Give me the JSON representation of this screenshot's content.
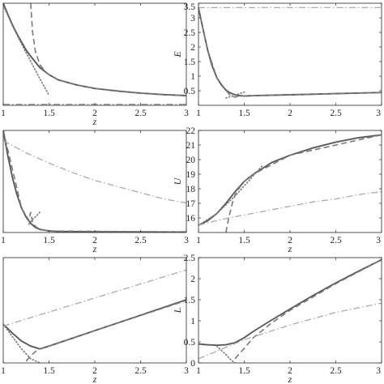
{
  "chart_data": [
    {
      "type": "line",
      "panel": "top-left",
      "xlabel": "z",
      "ylabel": "",
      "xlim": [
        1,
        3
      ],
      "ylim": [
        0,
        10
      ],
      "xticks": [
        "1",
        "1.5",
        "2",
        "2.5",
        "3"
      ],
      "yticks": [],
      "series": [
        {
          "style": "solid",
          "color": "#5a5a5a",
          "x": [
            1.0,
            1.05,
            1.1,
            1.15,
            1.2,
            1.25,
            1.3,
            1.4,
            1.5,
            1.6,
            1.8,
            2.0,
            2.25,
            2.5,
            2.75,
            3.0
          ],
          "y": [
            10.0,
            8.9,
            7.9,
            7.0,
            6.2,
            5.4,
            4.8,
            3.7,
            3.0,
            2.5,
            2.0,
            1.65,
            1.4,
            1.2,
            1.05,
            0.95
          ]
        },
        {
          "style": "dashed",
          "color": "#7a7a7a",
          "x": [
            1.3,
            1.32,
            1.35,
            1.4,
            1.45,
            1.5,
            1.6,
            1.8,
            2.0,
            2.5,
            3.0
          ],
          "y": [
            10.0,
            7.2,
            5.3,
            4.0,
            3.4,
            3.0,
            2.5,
            2.0,
            1.65,
            1.2,
            0.95
          ]
        },
        {
          "style": "dotted",
          "color": "#7a7a7a",
          "x": [
            1.0,
            1.1,
            1.2,
            1.3,
            1.4,
            1.5
          ],
          "y": [
            9.8,
            7.8,
            6.0,
            4.3,
            2.6,
            1.0
          ]
        },
        {
          "style": "dashdot",
          "color": "#9a9a9a",
          "x": [
            1.0,
            3.0
          ],
          "y": [
            0.1,
            0.1
          ]
        }
      ]
    },
    {
      "type": "line",
      "panel": "top-right",
      "xlabel": "",
      "ylabel": "E",
      "xlim": [
        1,
        3
      ],
      "ylim": [
        0,
        3.5
      ],
      "xticks": [
        "1",
        "1.5",
        "2",
        "2.5",
        "3"
      ],
      "yticks": [
        "0.5",
        "1",
        "1.5",
        "2",
        "2.5",
        "3",
        "3.5"
      ],
      "series": [
        {
          "style": "solid",
          "color": "#5a5a5a",
          "x": [
            1.0,
            1.05,
            1.1,
            1.15,
            1.2,
            1.25,
            1.3,
            1.35,
            1.4,
            1.45,
            1.5,
            1.6,
            2.0,
            2.5,
            3.0
          ],
          "y": [
            3.35,
            2.6,
            1.9,
            1.35,
            0.95,
            0.7,
            0.52,
            0.42,
            0.36,
            0.33,
            0.32,
            0.33,
            0.36,
            0.4,
            0.44
          ]
        },
        {
          "style": "dashed",
          "color": "#7a7a7a",
          "x": [
            1.0,
            1.1,
            1.2,
            1.3,
            1.35,
            1.4,
            1.45,
            1.5,
            2.0,
            2.5,
            3.0
          ],
          "y": [
            3.35,
            1.9,
            0.95,
            0.52,
            0.32,
            0.28,
            0.33,
            0.32,
            0.36,
            0.4,
            0.44
          ]
        },
        {
          "style": "dotted",
          "color": "#7a7a7a",
          "x": [
            1.3,
            1.35,
            1.4,
            1.45,
            1.5
          ],
          "y": [
            0.25,
            0.3,
            0.35,
            0.4,
            0.45
          ]
        },
        {
          "style": "dashdot",
          "color": "#aaaaaa",
          "x": [
            1.0,
            3.0
          ],
          "y": [
            3.35,
            3.35
          ]
        }
      ]
    },
    {
      "type": "line",
      "panel": "middle-left",
      "xlabel": "z",
      "ylabel": "",
      "xlim": [
        1,
        3
      ],
      "ylim": [
        0,
        10
      ],
      "xticks": [
        "1",
        "1.5",
        "2",
        "2.5",
        "3"
      ],
      "yticks": [],
      "series": [
        {
          "style": "solid",
          "color": "#5a5a5a",
          "x": [
            1.0,
            1.05,
            1.1,
            1.15,
            1.2,
            1.25,
            1.3,
            1.35,
            1.4,
            1.5,
            1.6,
            2.0,
            3.0
          ],
          "y": [
            10.0,
            7.5,
            5.4,
            3.7,
            2.4,
            1.5,
            0.9,
            0.5,
            0.3,
            0.15,
            0.1,
            0.06,
            0.05
          ]
        },
        {
          "style": "dashed",
          "color": "#7a7a7a",
          "x": [
            1.0,
            1.2,
            1.28,
            1.3,
            1.32,
            1.35,
            1.4,
            1.5,
            3.0
          ],
          "y": [
            10.0,
            2.4,
            1.2,
            2.0,
            1.0,
            0.6,
            0.3,
            0.15,
            0.05
          ]
        },
        {
          "style": "dotted",
          "color": "#7a7a7a",
          "x": [
            1.28,
            1.32,
            1.36,
            1.4
          ],
          "y": [
            0.8,
            1.3,
            1.6,
            2.0
          ]
        },
        {
          "style": "dashdot",
          "color": "#aaaaaa",
          "x": [
            1.0,
            1.25,
            1.5,
            1.75,
            2.0,
            2.25,
            2.5,
            2.75,
            3.0
          ],
          "y": [
            9.0,
            7.8,
            6.8,
            5.9,
            5.1,
            4.5,
            3.9,
            3.3,
            2.9
          ]
        }
      ]
    },
    {
      "type": "line",
      "panel": "middle-right",
      "xlabel": "z",
      "ylabel": "U",
      "xlim": [
        1,
        3
      ],
      "ylim": [
        15,
        22
      ],
      "xticks": [
        "1",
        "1.5",
        "2",
        "2.5",
        "3"
      ],
      "yticks": [
        "16",
        "17",
        "18",
        "19",
        "20",
        "21",
        "22"
      ],
      "series": [
        {
          "style": "solid",
          "color": "#5a5a5a",
          "x": [
            1.0,
            1.1,
            1.2,
            1.3,
            1.4,
            1.5,
            1.6,
            1.8,
            2.0,
            2.25,
            2.5,
            2.75,
            3.0
          ],
          "y": [
            15.5,
            15.8,
            16.3,
            17.0,
            17.8,
            18.5,
            19.0,
            19.8,
            20.3,
            20.8,
            21.2,
            21.5,
            21.7
          ]
        },
        {
          "style": "dashed",
          "color": "#7a7a7a",
          "x": [
            1.3,
            1.33,
            1.37,
            1.4,
            1.45,
            1.5,
            1.6,
            2.0,
            3.0
          ],
          "y": [
            15.0,
            16.0,
            17.0,
            17.6,
            18.1,
            18.5,
            19.0,
            20.3,
            21.7
          ]
        },
        {
          "style": "dotted",
          "color": "#7a7a7a",
          "x": [
            1.0,
            1.2,
            1.4,
            1.6,
            1.7
          ],
          "y": [
            15.5,
            16.3,
            17.5,
            18.9,
            19.6
          ]
        },
        {
          "style": "dashdot",
          "color": "#aaaaaa",
          "x": [
            1.0,
            1.25,
            1.5,
            1.75,
            2.0,
            2.25,
            2.5,
            2.75,
            3.0
          ],
          "y": [
            15.5,
            15.9,
            16.2,
            16.5,
            16.8,
            17.1,
            17.3,
            17.6,
            17.8
          ]
        }
      ]
    },
    {
      "type": "line",
      "panel": "bottom-left",
      "xlabel": "z",
      "ylabel": "",
      "xlim": [
        1,
        3
      ],
      "ylim": [
        0,
        3
      ],
      "xticks": [
        "1",
        "1.5",
        "2",
        "2.5",
        "3"
      ],
      "yticks": [],
      "series": [
        {
          "style": "solid",
          "color": "#5a5a5a",
          "x": [
            1.0,
            1.1,
            1.2,
            1.3,
            1.4,
            1.5,
            1.75,
            2.0,
            2.25,
            2.5,
            2.75,
            3.0
          ],
          "y": [
            1.1,
            0.85,
            0.62,
            0.48,
            0.4,
            0.48,
            0.7,
            0.92,
            1.14,
            1.36,
            1.58,
            1.8
          ]
        },
        {
          "style": "dashed",
          "color": "#7a7a7a",
          "x": [
            1.25,
            1.3,
            1.35,
            1.4,
            1.5,
            2.0,
            3.0
          ],
          "y": [
            0.05,
            0.2,
            0.32,
            0.4,
            0.48,
            0.92,
            1.78
          ]
        },
        {
          "style": "dotted",
          "color": "#7a7a7a",
          "x": [
            1.0,
            1.1,
            1.2,
            1.3,
            1.4
          ],
          "y": [
            1.1,
            0.75,
            0.4,
            0.12,
            0.0
          ]
        },
        {
          "style": "dashdot",
          "color": "#aaaaaa",
          "x": [
            1.0,
            1.5,
            2.0,
            2.5,
            3.0
          ],
          "y": [
            1.05,
            1.45,
            1.85,
            2.25,
            2.65
          ]
        }
      ]
    },
    {
      "type": "line",
      "panel": "bottom-right",
      "xlabel": "z",
      "ylabel": "L",
      "xlim": [
        1,
        3
      ],
      "ylim": [
        0,
        2.5
      ],
      "xticks": [
        "1",
        "1.5",
        "2",
        "2.5",
        "3"
      ],
      "yticks": [
        "0",
        "0.5",
        "1",
        "1.5",
        "2",
        "2.5"
      ],
      "series": [
        {
          "style": "solid",
          "color": "#5a5a5a",
          "x": [
            1.0,
            1.1,
            1.2,
            1.3,
            1.4,
            1.5,
            1.6,
            1.8,
            2.0,
            2.25,
            2.5,
            2.75,
            3.0
          ],
          "y": [
            0.45,
            0.43,
            0.42,
            0.43,
            0.48,
            0.6,
            0.75,
            1.02,
            1.28,
            1.6,
            1.9,
            2.18,
            2.45
          ]
        },
        {
          "style": "dashed",
          "color": "#7a7a7a",
          "x": [
            1.4,
            1.5,
            1.6,
            1.8,
            2.0,
            2.5,
            3.0
          ],
          "y": [
            0.1,
            0.35,
            0.6,
            0.95,
            1.25,
            1.88,
            2.45
          ]
        },
        {
          "style": "dotted",
          "color": "#7a7a7a",
          "x": [
            1.2,
            1.3,
            1.35,
            1.4
          ],
          "y": [
            0.4,
            0.2,
            0.08,
            0.0
          ]
        },
        {
          "style": "dashdot",
          "color": "#aaaaaa",
          "x": [
            1.0,
            1.5,
            2.0,
            2.5,
            3.0
          ],
          "y": [
            0.1,
            0.55,
            0.9,
            1.2,
            1.42
          ]
        }
      ]
    }
  ]
}
